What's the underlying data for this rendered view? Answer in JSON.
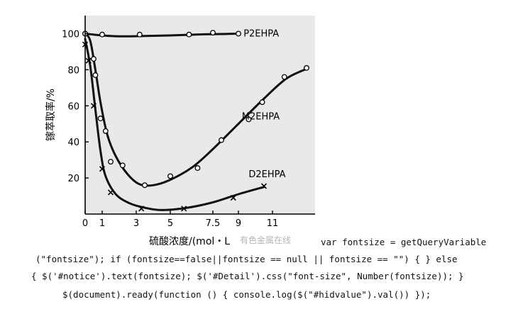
{
  "chart_data": {
    "type": "line",
    "xlabel": "硫酸浓度/(mol・L",
    "ylabel": "镓萃取率/%",
    "xlim": [
      0,
      13.5
    ],
    "ylim": [
      0,
      110
    ],
    "x_ticks": [
      0,
      1,
      3,
      5,
      7.5,
      9,
      11
    ],
    "x_tick_labels": [
      "0",
      "1",
      "3",
      "5",
      "7.5",
      "9",
      "11"
    ],
    "y_ticks": [
      20,
      40,
      60,
      80,
      100
    ],
    "y_tick_labels": [
      "20",
      "40",
      "60",
      "80",
      "100"
    ],
    "grid": false,
    "series": [
      {
        "name": "P2EHPA",
        "marker": "circle",
        "points": [
          [
            0,
            100
          ],
          [
            1,
            99.5
          ],
          [
            3.2,
            99.5
          ],
          [
            6.1,
            99.5
          ],
          [
            7.5,
            100.5
          ],
          [
            9,
            100
          ]
        ],
        "curve": [
          [
            0,
            100
          ],
          [
            1,
            99
          ],
          [
            2,
            98.5
          ],
          [
            3.5,
            98.7
          ],
          [
            5,
            99
          ],
          [
            6.5,
            99.5
          ],
          [
            8,
            99.8
          ],
          [
            9,
            100
          ]
        ]
      },
      {
        "name": "M2EHPA",
        "marker": "circle",
        "points": [
          [
            0,
            100
          ],
          [
            0.5,
            86
          ],
          [
            0.6,
            77
          ],
          [
            0.9,
            53
          ],
          [
            1.2,
            46
          ],
          [
            1.5,
            29
          ],
          [
            2.2,
            27
          ],
          [
            3.5,
            16
          ],
          [
            5,
            21
          ],
          [
            6.6,
            25.5
          ],
          [
            8,
            41
          ],
          [
            9.6,
            52.5
          ],
          [
            10.4,
            62
          ],
          [
            11.7,
            76
          ],
          [
            13,
            81
          ]
        ],
        "curve": [
          [
            0,
            100
          ],
          [
            0.3,
            96
          ],
          [
            0.6,
            80
          ],
          [
            0.9,
            62
          ],
          [
            1.3,
            44
          ],
          [
            1.8,
            32
          ],
          [
            2.5,
            22
          ],
          [
            3.2,
            16.5
          ],
          [
            4,
            16
          ],
          [
            5,
            19
          ],
          [
            6.3,
            26
          ],
          [
            7.5,
            36
          ],
          [
            9,
            50
          ],
          [
            10.5,
            64
          ],
          [
            11.8,
            75
          ],
          [
            13,
            80.5
          ]
        ]
      },
      {
        "name": "D2EHPA",
        "marker": "cross",
        "points": [
          [
            0,
            94
          ],
          [
            0.2,
            85
          ],
          [
            0.5,
            60
          ],
          [
            1,
            25
          ],
          [
            1.5,
            12
          ],
          [
            3.3,
            3
          ],
          [
            5.8,
            3
          ],
          [
            8.7,
            9
          ],
          [
            10.5,
            15.5
          ]
        ],
        "curve": [
          [
            0,
            97
          ],
          [
            0.3,
            82
          ],
          [
            0.6,
            58
          ],
          [
            0.9,
            35
          ],
          [
            1.2,
            21
          ],
          [
            1.8,
            11
          ],
          [
            2.6,
            6
          ],
          [
            3.5,
            3.5
          ],
          [
            4.5,
            2.2
          ],
          [
            6,
            3.5
          ],
          [
            7.5,
            6.5
          ],
          [
            9,
            11
          ],
          [
            10.5,
            15
          ]
        ]
      }
    ]
  },
  "watermark": "有色金属在线",
  "code_lines": [
    "var fontsize = getQueryVariable",
    "(\"fontsize\"); if (fontsize==false||fontsize == null || fontsize == \"\") { } else",
    "{ $('#notice').text(fontsize); $('#Detail').css(\"font-size\", Number(fontsize)); }",
    "$(document).ready(function () { console.log($(\"#hidvalue\").val()) });"
  ]
}
